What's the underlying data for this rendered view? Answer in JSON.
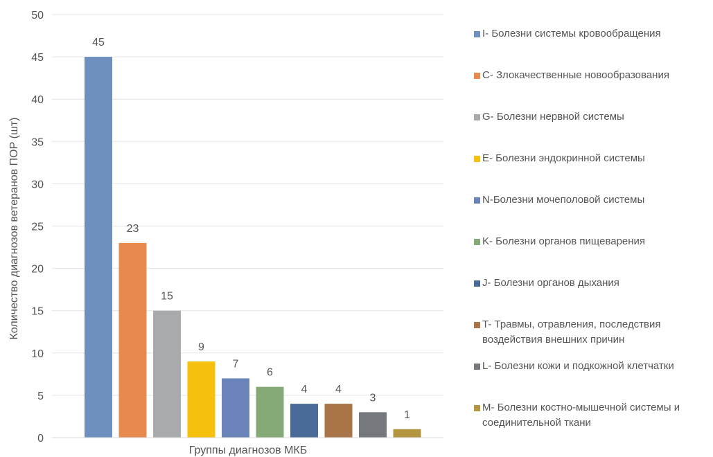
{
  "chart_data": {
    "type": "bar",
    "xlabel": "Группы диагнозов МКБ",
    "ylabel": "Количество диагнозов ветеранов ПОР (шт)",
    "ylim": [
      0,
      50
    ],
    "yticks": [
      0,
      5,
      10,
      15,
      20,
      25,
      30,
      35,
      40,
      45,
      50
    ],
    "grid": true,
    "legend_position": "right",
    "series": [
      {
        "name": "I- Болезни системы кровообращения",
        "value": 45,
        "color": "#6f8fbe"
      },
      {
        "name": "C- Злокачественные новообразования",
        "value": 23,
        "color": "#e8894d"
      },
      {
        "name": "G- Болезни нервной системы",
        "value": 15,
        "color": "#a9aaac"
      },
      {
        "name": "E- Болезни эндокринной системы",
        "value": 9,
        "color": "#f6c00f"
      },
      {
        "name": "N-Болезни мочеполовой системы",
        "value": 7,
        "color": "#6a84b9"
      },
      {
        "name": "K- Болезни органов пищеварения",
        "value": 6,
        "color": "#86a978"
      },
      {
        "name": "J- Болезни органов дыхания",
        "value": 4,
        "color": "#4a6a98"
      },
      {
        "name": "T- Травмы, отравления, последствия воздействия внешних причин",
        "value": 4,
        "color": "#a87448"
      },
      {
        "name": "L- Болезни кожи и подкожной клетчатки",
        "value": 3,
        "color": "#75797d"
      },
      {
        "name": "M- Болезни костно-мышечной системы и соединительной ткани",
        "value": 1,
        "color": "#b3963f"
      }
    ]
  }
}
